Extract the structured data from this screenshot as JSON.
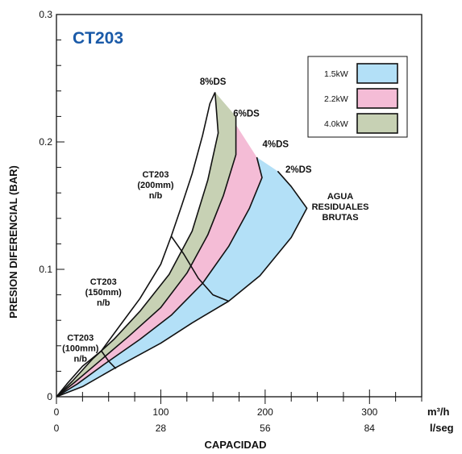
{
  "chart_data": {
    "type": "area",
    "title": "CT203",
    "ylabel": "PRESION DIFERENCIAL (BAR)",
    "xlabel": "CAPACIDAD",
    "x_unit_primary": "m³/h",
    "x_unit_secondary": "l/seg",
    "xlim": [
      0,
      350
    ],
    "ylim": [
      0,
      0.3
    ],
    "x_ticks_primary": [
      "0",
      "100",
      "200",
      "300"
    ],
    "x_ticks_secondary": [
      "0",
      "28",
      "56",
      "84"
    ],
    "y_ticks": [
      "0",
      "0.1",
      "0.2",
      "0.3"
    ],
    "legend_placement": "top-right",
    "legend": [
      {
        "label": "1.5kW",
        "color": "#b3e0f7"
      },
      {
        "label": "2.2kW",
        "color": "#f4bcd6"
      },
      {
        "label": "4.0kW",
        "color": "#c7d1b4"
      }
    ],
    "series": [
      {
        "name": "2%DS",
        "points": [
          [
            0,
            0
          ],
          [
            25,
            0.008
          ],
          [
            55,
            0.022
          ],
          [
            100,
            0.042
          ],
          [
            130,
            0.058
          ],
          [
            165,
            0.075
          ],
          [
            195,
            0.095
          ],
          [
            225,
            0.125
          ],
          [
            240,
            0.148
          ],
          [
            225,
            0.165
          ],
          [
            212,
            0.177
          ]
        ]
      },
      {
        "name": "4%DS",
        "points": [
          [
            0,
            0
          ],
          [
            20,
            0.01
          ],
          [
            45,
            0.025
          ],
          [
            80,
            0.045
          ],
          [
            110,
            0.064
          ],
          [
            140,
            0.089
          ],
          [
            165,
            0.118
          ],
          [
            185,
            0.148
          ],
          [
            197,
            0.172
          ],
          [
            192,
            0.188
          ]
        ]
      },
      {
        "name": "6%DS",
        "points": [
          [
            0,
            0
          ],
          [
            17,
            0.011
          ],
          [
            40,
            0.027
          ],
          [
            70,
            0.048
          ],
          [
            100,
            0.07
          ],
          [
            125,
            0.097
          ],
          [
            145,
            0.127
          ],
          [
            160,
            0.158
          ],
          [
            172,
            0.19
          ],
          [
            172,
            0.22
          ]
        ]
      },
      {
        "name": "8%DS",
        "points": [
          [
            0,
            0
          ],
          [
            15,
            0.012
          ],
          [
            35,
            0.03
          ],
          [
            55,
            0.045
          ],
          [
            80,
            0.067
          ],
          [
            108,
            0.096
          ],
          [
            130,
            0.13
          ],
          [
            145,
            0.17
          ],
          [
            155,
            0.207
          ],
          [
            152,
            0.239
          ]
        ]
      }
    ],
    "boundaries": [
      {
        "name": "upper",
        "points": [
          [
            0,
            0
          ],
          [
            10,
            0.01
          ],
          [
            25,
            0.024
          ],
          [
            43,
            0.036
          ],
          [
            60,
            0.055
          ],
          [
            80,
            0.077
          ],
          [
            100,
            0.104
          ],
          [
            110,
            0.126
          ],
          [
            120,
            0.15
          ],
          [
            130,
            0.175
          ],
          [
            140,
            0.205
          ],
          [
            147,
            0.23
          ],
          [
            152,
            0.239
          ]
        ]
      },
      {
        "name": "inner",
        "points": [
          [
            43,
            0.036
          ],
          [
            50,
            0.028
          ],
          [
            57,
            0.022
          ]
        ]
      },
      {
        "name": "mid",
        "points": [
          [
            110,
            0.126
          ],
          [
            122,
            0.112
          ],
          [
            136,
            0.093
          ],
          [
            150,
            0.08
          ],
          [
            165,
            0.075
          ]
        ]
      }
    ],
    "regions": [
      {
        "power": "1.5kW",
        "between": [
          "2%DS",
          "4%DS"
        ],
        "color": "#b3e0f7"
      },
      {
        "power": "2.2kW",
        "between": [
          "4%DS",
          "8%DS"
        ],
        "color": "#f4bcd6"
      },
      {
        "power": "4.0kW",
        "between": [
          "6%DS",
          "8%DS"
        ],
        "color": "#c7d1b4"
      }
    ],
    "annotations": [
      {
        "lines": [
          "CT203",
          "(200mm)",
          "n/b"
        ],
        "x": 95,
        "y": 0.172
      },
      {
        "lines": [
          "CT203",
          "(150mm)",
          "n/b"
        ],
        "x": 45,
        "y": 0.088
      },
      {
        "lines": [
          "CT203",
          "(100mm)",
          "n/b"
        ],
        "x": 23,
        "y": 0.044
      },
      {
        "lines": [
          "AGUA",
          "RESIDUALES",
          "BRUTAS"
        ],
        "x": 272,
        "y": 0.155
      },
      {
        "lines": [
          "8%DS"
        ],
        "x": 150,
        "y": 0.245
      },
      {
        "lines": [
          "6%DS"
        ],
        "x": 182,
        "y": 0.22
      },
      {
        "lines": [
          "4%DS"
        ],
        "x": 210,
        "y": 0.196
      },
      {
        "lines": [
          "2%DS"
        ],
        "x": 232,
        "y": 0.176
      }
    ]
  }
}
